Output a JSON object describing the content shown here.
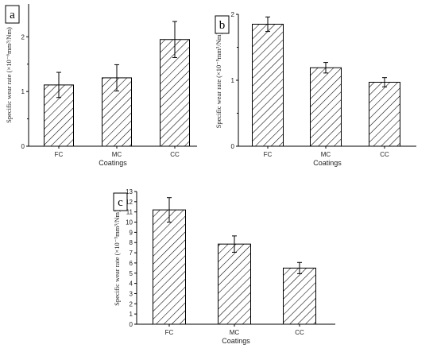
{
  "chart_data": [
    {
      "type": "bar",
      "panel_label": "a",
      "categories": [
        "FC",
        "MC",
        "CC"
      ],
      "values": [
        1.12,
        1.25,
        1.95
      ],
      "errors": [
        0.23,
        0.24,
        0.33
      ],
      "ylim": [
        0,
        2.6
      ],
      "yticks": [
        0,
        1,
        2
      ],
      "xlabel": "Coatings",
      "ylabel": "Specific wear rate (×10⁻⁶mm³/Nm)",
      "fill": "diagonal-hatch"
    },
    {
      "type": "bar",
      "panel_label": "b",
      "categories": [
        "FC",
        "MC",
        "CC"
      ],
      "values": [
        1.85,
        1.19,
        0.97
      ],
      "errors": [
        0.11,
        0.08,
        0.07
      ],
      "ylim": [
        0,
        2.0
      ],
      "yticks": [
        0,
        1,
        2
      ],
      "xlabel": "Coatings",
      "ylabel": "Specific wear rate (×10⁻⁵mm³/Nm)",
      "fill": "diagonal-hatch"
    },
    {
      "type": "bar",
      "panel_label": "c",
      "categories": [
        "FC",
        "MC",
        "CC"
      ],
      "values": [
        11.2,
        7.85,
        5.5
      ],
      "errors": [
        1.2,
        0.8,
        0.55
      ],
      "ylim": [
        0,
        13
      ],
      "yticks": [
        0,
        1,
        2,
        3,
        4,
        5,
        6,
        7,
        8,
        9,
        10,
        11,
        12,
        13
      ],
      "xlabel": "Coatings",
      "ylabel": "Specific wear rate (×10⁻⁵mm³/Nm)",
      "fill": "diagonal-hatch"
    }
  ]
}
